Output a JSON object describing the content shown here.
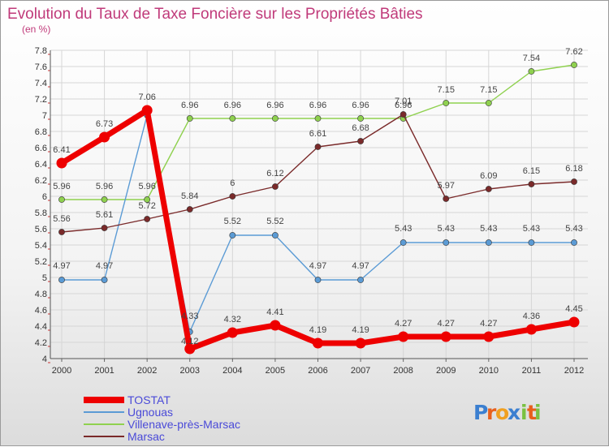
{
  "chart_data": {
    "type": "line",
    "title": "Evolution du Taux de Taxe Foncière sur les Propriétés Bâties",
    "subtitle": "(en %)",
    "categories": [
      "2000",
      "2001",
      "2002",
      "2003",
      "2004",
      "2005",
      "2006",
      "2007",
      "2008",
      "2009",
      "2010",
      "2011",
      "2012"
    ],
    "ylim": [
      4,
      7.8
    ],
    "yticks": [
      "4",
      "4.2",
      "4.4",
      "4.6",
      "4.8",
      "5",
      "5.2",
      "5.4",
      "5.6",
      "5.8",
      "6",
      "6.2",
      "6.4",
      "6.6",
      "6.8",
      "7",
      "7.2",
      "7.4",
      "7.6",
      "7.8"
    ],
    "grid": true,
    "legend_position": "bottom-left",
    "series": [
      {
        "name": "TOSTAT",
        "color": "#ee0000",
        "values": [
          6.41,
          6.73,
          7.06,
          4.12,
          4.32,
          4.41,
          4.19,
          4.19,
          4.27,
          4.27,
          4.27,
          4.36,
          4.45
        ],
        "labels": [
          "6.41",
          "6.73",
          "7.06",
          "4.12",
          "4.32",
          "4.41",
          "4.19",
          "4.19",
          "4.27",
          "4.27",
          "4.27",
          "4.36",
          "4.45"
        ]
      },
      {
        "name": "Ugnouas",
        "color": "#5b9bd5",
        "values": [
          4.97,
          4.97,
          7.0,
          4.33,
          5.52,
          5.52,
          4.97,
          4.97,
          5.43,
          5.43,
          5.43,
          5.43,
          5.43
        ],
        "labels": [
          "4.97",
          "4.97",
          "",
          "4.33",
          "5.52",
          "5.52",
          "4.97",
          "4.97",
          "5.43",
          "5.43",
          "5.43",
          "5.43",
          "5.43"
        ]
      },
      {
        "name": "Villenave-près-Marsac",
        "color": "#8fd14f",
        "values": [
          5.96,
          5.96,
          5.96,
          6.96,
          6.96,
          6.96,
          6.96,
          6.96,
          6.96,
          7.15,
          7.15,
          7.54,
          7.62
        ],
        "labels": [
          "5.96",
          "5.96",
          "5.96",
          "6.96",
          "6.96",
          "6.96",
          "6.96",
          "6.96",
          "6.96",
          "7.15",
          "7.15",
          "7.54",
          "7.62"
        ]
      },
      {
        "name": "Marsac",
        "color": "#7a2a2a",
        "values": [
          5.56,
          5.61,
          5.72,
          5.84,
          6.0,
          6.12,
          6.61,
          6.68,
          7.01,
          5.97,
          6.09,
          6.15,
          6.18
        ],
        "labels": [
          "5.56",
          "5.61",
          "5.72",
          "5.84",
          "6",
          "6.12",
          "6.61",
          "6.68",
          "7.01",
          "5.97",
          "6.09",
          "6.15",
          "6.18"
        ]
      }
    ]
  },
  "logo": {
    "text": "Proxiti",
    "letters": [
      "P",
      "r",
      "o",
      "x",
      "i",
      "t",
      "i"
    ],
    "colors": [
      "#3b7fd0",
      "#e8601c",
      "#f0a020",
      "#3b7fd0",
      "#7ac142",
      "#e8601c",
      "#7ac142"
    ]
  }
}
